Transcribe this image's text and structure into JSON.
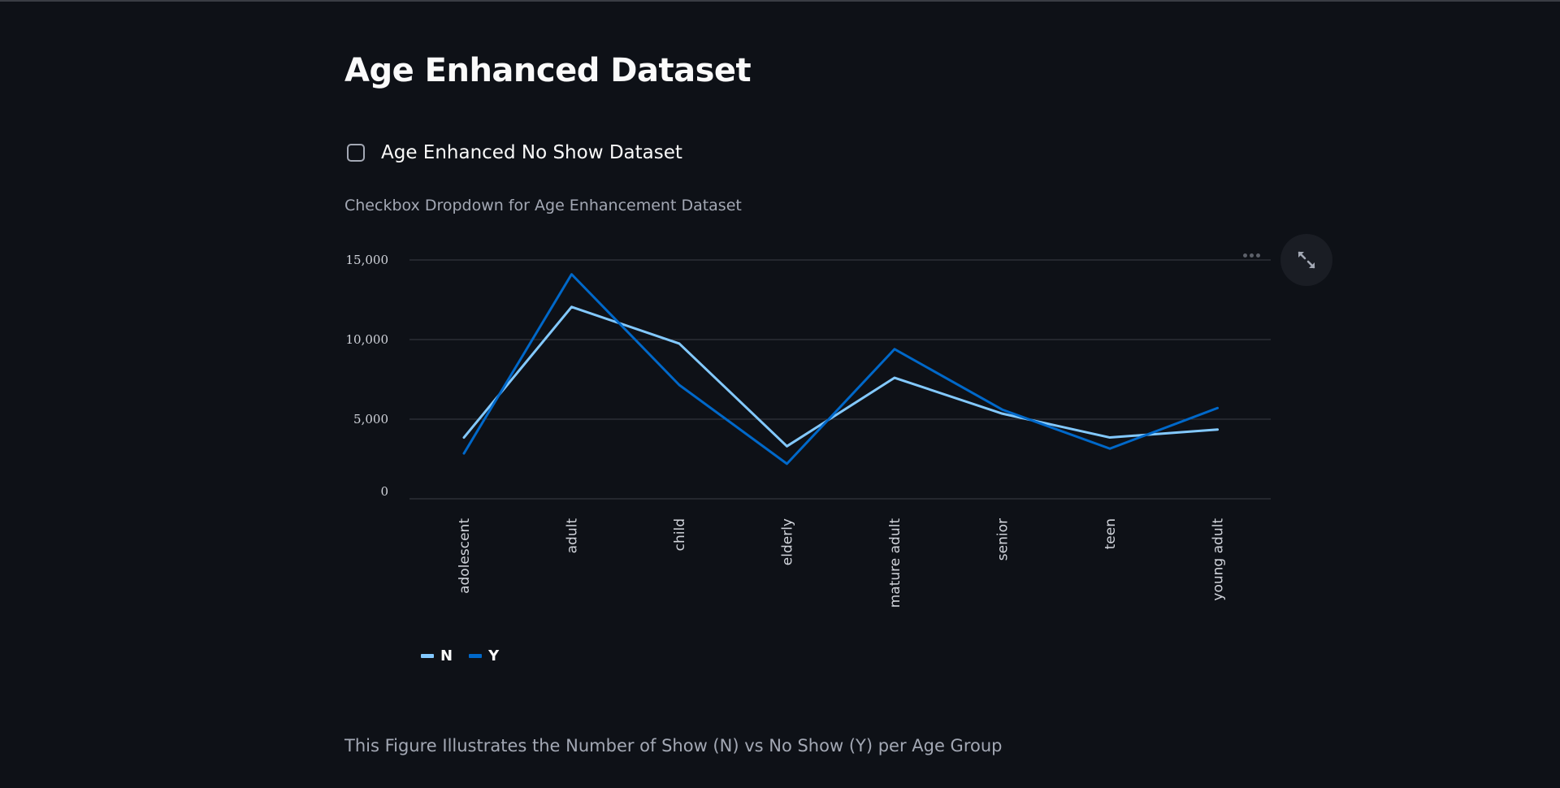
{
  "header": {
    "title": "Age Enhanced Dataset"
  },
  "checkbox": {
    "label": "Age Enhanced No Show Dataset",
    "checked": false
  },
  "caption_top": "Checkbox Dropdown for Age Enhancement Dataset",
  "caption_bottom": "This Figure Illustrates the Number of Show (N) vs No Show (Y) per Age Group",
  "colors": {
    "background": "#0e1117",
    "series_N": "#83c9ff",
    "series_Y": "#0068c9",
    "grid": "#3a3d44",
    "text": "#fafafa",
    "muted": "#a3a8b4"
  },
  "icons": {
    "menu": "more-horizontal-icon",
    "expand": "expand-icon"
  },
  "chart_data": {
    "type": "line",
    "categories": [
      "adolescent",
      "adult",
      "child",
      "elderly",
      "mature adult",
      "senior",
      "teen",
      "young adult"
    ],
    "series": [
      {
        "name": "N",
        "values": [
          3850,
          12050,
          9750,
          3300,
          7600,
          5350,
          3850,
          4350
        ]
      },
      {
        "name": "Y",
        "values": [
          2850,
          14100,
          7150,
          2200,
          9400,
          5600,
          3150,
          5700
        ]
      }
    ],
    "yticks": [
      "0",
      "5,000",
      "10,000",
      "15,000"
    ],
    "ylim": [
      0,
      15000
    ],
    "grid": true,
    "legend": "bottom-left",
    "xlabel": "",
    "ylabel": ""
  }
}
